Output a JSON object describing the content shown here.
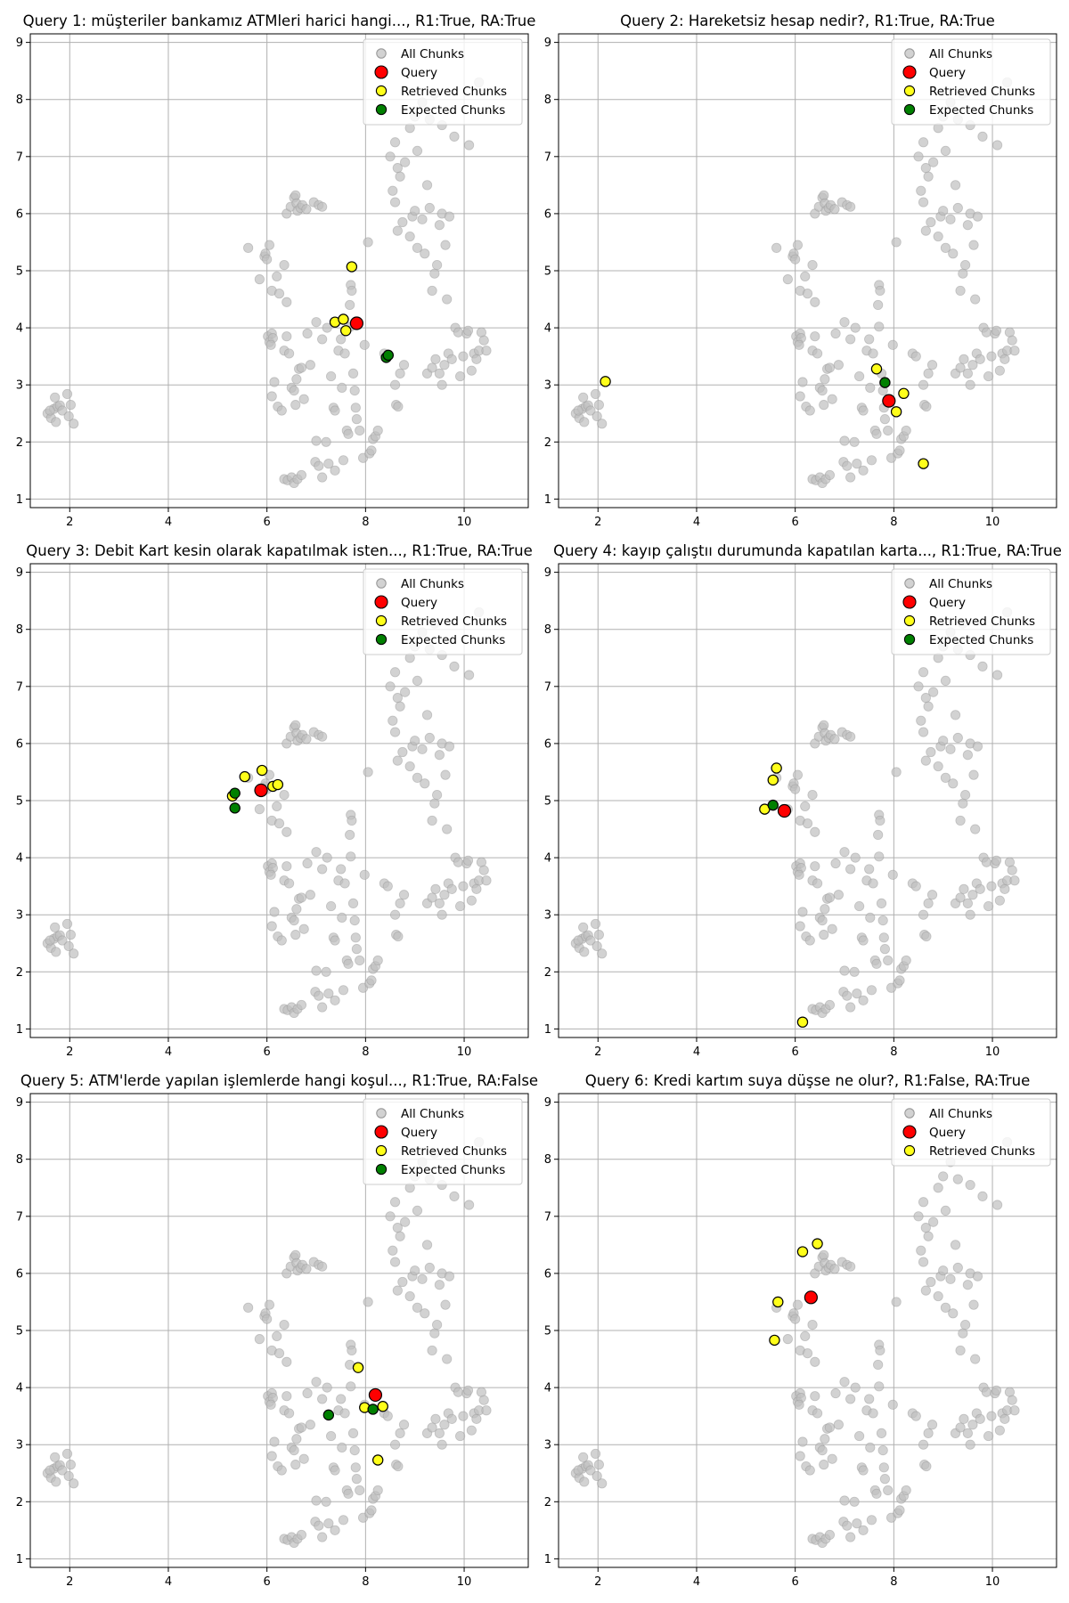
{
  "chart_data": {
    "type": "scatter",
    "colors": {
      "all_chunks": "#bfbfbf",
      "query": "#ff0000",
      "retrieved": "#ffff1a",
      "expected": "#008000",
      "marker_edge": "#000000",
      "grid": "#b0b0b0"
    },
    "xlim": [
      1.2,
      11.3
    ],
    "ylim": [
      0.85,
      9.15
    ],
    "x_ticks": [
      2,
      4,
      6,
      8,
      10
    ],
    "y_ticks": [
      1,
      2,
      3,
      4,
      5,
      6,
      7,
      8,
      9
    ],
    "grid": true,
    "legend_position": "top-right",
    "all_chunks": [
      [
        1.55,
        2.5
      ],
      [
        1.62,
        2.42
      ],
      [
        1.68,
        2.58
      ],
      [
        1.72,
        2.35
      ],
      [
        1.75,
        2.62
      ],
      [
        1.8,
        2.64
      ],
      [
        1.85,
        2.55
      ],
      [
        1.7,
        2.78
      ],
      [
        1.95,
        2.84
      ],
      [
        1.98,
        2.45
      ],
      [
        2.02,
        2.65
      ],
      [
        2.08,
        2.32
      ],
      [
        1.6,
        2.55
      ],
      [
        5.62,
        5.4
      ],
      [
        5.85,
        4.85
      ],
      [
        5.95,
        5.25
      ],
      [
        5.97,
        5.3
      ],
      [
        6.0,
        5.2
      ],
      [
        6.05,
        5.45
      ],
      [
        6.2,
        4.9
      ],
      [
        6.1,
        4.65
      ],
      [
        6.35,
        5.1
      ],
      [
        6.25,
        4.6
      ],
      [
        6.4,
        4.45
      ],
      [
        6.02,
        3.85
      ],
      [
        6.05,
        3.75
      ],
      [
        6.1,
        3.9
      ],
      [
        6.12,
        3.82
      ],
      [
        6.08,
        3.7
      ],
      [
        6.15,
        3.05
      ],
      [
        6.1,
        2.8
      ],
      [
        6.22,
        2.62
      ],
      [
        6.3,
        2.55
      ],
      [
        6.35,
        3.6
      ],
      [
        6.4,
        3.85
      ],
      [
        6.45,
        3.55
      ],
      [
        6.5,
        2.95
      ],
      [
        6.55,
        2.9
      ],
      [
        6.6,
        3.1
      ],
      [
        6.58,
        2.65
      ],
      [
        6.65,
        3.28
      ],
      [
        6.7,
        3.3
      ],
      [
        6.75,
        2.75
      ],
      [
        6.82,
        3.9
      ],
      [
        6.88,
        3.35
      ],
      [
        6.35,
        1.35
      ],
      [
        6.42,
        1.33
      ],
      [
        6.5,
        1.38
      ],
      [
        6.55,
        1.28
      ],
      [
        6.62,
        1.35
      ],
      [
        6.7,
        1.42
      ],
      [
        6.98,
        1.65
      ],
      [
        7.05,
        1.58
      ],
      [
        7.0,
        2.02
      ],
      [
        7.12,
        1.38
      ],
      [
        7.2,
        2.0
      ],
      [
        7.25,
        1.62
      ],
      [
        7.38,
        1.5
      ],
      [
        6.4,
        6.0
      ],
      [
        6.48,
        6.12
      ],
      [
        6.55,
        6.28
      ],
      [
        6.58,
        6.32
      ],
      [
        6.6,
        6.18
      ],
      [
        6.62,
        6.05
      ],
      [
        6.68,
        6.1
      ],
      [
        6.72,
        6.15
      ],
      [
        6.8,
        6.08
      ],
      [
        6.95,
        6.2
      ],
      [
        7.05,
        6.15
      ],
      [
        7.12,
        6.12
      ],
      [
        7.0,
        4.1
      ],
      [
        7.12,
        3.8
      ],
      [
        7.22,
        4.0
      ],
      [
        7.3,
        3.15
      ],
      [
        7.35,
        2.6
      ],
      [
        7.38,
        2.55
      ],
      [
        7.45,
        3.6
      ],
      [
        7.5,
        3.8
      ],
      [
        7.52,
        2.95
      ],
      [
        7.58,
        3.55
      ],
      [
        7.62,
        2.2
      ],
      [
        7.65,
        2.14
      ],
      [
        7.68,
        4.4
      ],
      [
        7.7,
        4.75
      ],
      [
        7.72,
        4.65
      ],
      [
        7.75,
        3.2
      ],
      [
        7.78,
        2.9
      ],
      [
        7.8,
        2.6
      ],
      [
        7.82,
        2.4
      ],
      [
        7.88,
        2.2
      ],
      [
        7.7,
        4.02
      ],
      [
        7.55,
        1.68
      ],
      [
        7.95,
        1.72
      ],
      [
        7.98,
        3.7
      ],
      [
        8.08,
        1.8
      ],
      [
        8.12,
        1.85
      ],
      [
        8.15,
        2.05
      ],
      [
        8.2,
        2.1
      ],
      [
        8.25,
        2.2
      ],
      [
        8.05,
        5.5
      ],
      [
        8.38,
        3.55
      ],
      [
        8.45,
        3.5
      ],
      [
        8.6,
        3.0
      ],
      [
        8.62,
        2.65
      ],
      [
        8.66,
        2.62
      ],
      [
        8.7,
        3.2
      ],
      [
        8.78,
        3.35
      ],
      [
        8.5,
        7.0
      ],
      [
        8.6,
        7.25
      ],
      [
        8.65,
        6.8
      ],
      [
        8.7,
        6.65
      ],
      [
        8.55,
        6.4
      ],
      [
        8.6,
        6.2
      ],
      [
        8.8,
        6.9
      ],
      [
        8.65,
        5.7
      ],
      [
        8.75,
        5.85
      ],
      [
        8.9,
        5.6
      ],
      [
        8.95,
        5.95
      ],
      [
        9.0,
        6.05
      ],
      [
        9.05,
        5.4
      ],
      [
        9.15,
        5.9
      ],
      [
        9.2,
        5.3
      ],
      [
        9.25,
        6.5
      ],
      [
        9.3,
        6.1
      ],
      [
        9.35,
        4.65
      ],
      [
        9.4,
        4.95
      ],
      [
        9.45,
        5.1
      ],
      [
        9.5,
        5.8
      ],
      [
        9.55,
        6.0
      ],
      [
        9.62,
        5.45
      ],
      [
        9.65,
        4.5
      ],
      [
        9.7,
        5.95
      ],
      [
        8.9,
        7.5
      ],
      [
        9.0,
        7.7
      ],
      [
        9.05,
        7.1
      ],
      [
        9.15,
        7.95
      ],
      [
        9.3,
        7.65
      ],
      [
        9.4,
        8.1
      ],
      [
        9.55,
        7.55
      ],
      [
        9.8,
        7.35
      ],
      [
        10.1,
        7.2
      ],
      [
        10.3,
        8.3
      ],
      [
        9.25,
        3.2
      ],
      [
        9.35,
        3.3
      ],
      [
        9.42,
        3.45
      ],
      [
        9.5,
        3.2
      ],
      [
        9.55,
        3.0
      ],
      [
        9.6,
        3.35
      ],
      [
        9.68,
        3.55
      ],
      [
        9.75,
        3.45
      ],
      [
        9.82,
        4.0
      ],
      [
        9.88,
        3.92
      ],
      [
        9.92,
        3.15
      ],
      [
        9.98,
        3.5
      ],
      [
        10.05,
        3.9
      ],
      [
        10.08,
        3.95
      ],
      [
        10.15,
        3.25
      ],
      [
        10.2,
        3.55
      ],
      [
        10.25,
        3.45
      ],
      [
        10.3,
        3.6
      ],
      [
        10.35,
        3.92
      ],
      [
        10.4,
        3.78
      ],
      [
        10.45,
        3.6
      ]
    ],
    "panels": [
      {
        "title": "Query 1: müşteriler bankamız ATMleri harici hangi..., R1:True, RA:True",
        "query": [
          7.82,
          4.08
        ],
        "retrieved": [
          [
            7.72,
            5.07
          ],
          [
            7.38,
            4.1
          ],
          [
            7.55,
            4.15
          ],
          [
            7.6,
            3.95
          ]
        ],
        "expected": [
          [
            8.42,
            3.48
          ],
          [
            8.46,
            3.52
          ]
        ],
        "legend": [
          "All Chunks",
          "Query",
          "Retrieved Chunks",
          "Expected Chunks"
        ]
      },
      {
        "title": "Query 2: Hareketsiz hesap nedir?, R1:True, RA:True",
        "query": [
          7.9,
          2.72
        ],
        "retrieved": [
          [
            2.15,
            3.06
          ],
          [
            7.65,
            3.28
          ],
          [
            8.2,
            2.85
          ],
          [
            8.05,
            2.53
          ],
          [
            8.6,
            1.62
          ]
        ],
        "expected": [
          [
            7.82,
            3.04
          ]
        ],
        "legend": [
          "All Chunks",
          "Query",
          "Retrieved Chunks",
          "Expected Chunks"
        ]
      },
      {
        "title": "Query 3: Debit Kart kesin olarak kapatılmak isten..., R1:True, RA:True",
        "query": [
          5.88,
          5.18
        ],
        "retrieved": [
          [
            5.55,
            5.42
          ],
          [
            5.9,
            5.53
          ],
          [
            6.12,
            5.25
          ],
          [
            6.22,
            5.28
          ],
          [
            5.3,
            5.08
          ]
        ],
        "expected": [
          [
            5.35,
            5.13
          ],
          [
            5.35,
            4.87
          ]
        ],
        "legend": [
          "All Chunks",
          "Query",
          "Retrieved Chunks",
          "Expected Chunks"
        ]
      },
      {
        "title": "Query 4: kayıp çalıştıı durumunda kapatılan karta..., R1:True, RA:True",
        "query": [
          5.78,
          4.82
        ],
        "retrieved": [
          [
            5.62,
            5.57
          ],
          [
            5.55,
            5.36
          ],
          [
            5.38,
            4.85
          ],
          [
            6.15,
            1.12
          ]
        ],
        "expected": [
          [
            5.55,
            4.92
          ]
        ],
        "legend": [
          "All Chunks",
          "Query",
          "Retrieved Chunks",
          "Expected Chunks"
        ]
      },
      {
        "title": "Query 5: ATM'lerde yapılan işlemlerde hangi koşul..., R1:True, RA:False",
        "query": [
          8.2,
          3.87
        ],
        "retrieved": [
          [
            7.85,
            4.35
          ],
          [
            7.98,
            3.65
          ],
          [
            8.35,
            3.67
          ],
          [
            8.25,
            2.73
          ]
        ],
        "expected": [
          [
            7.25,
            3.52
          ],
          [
            8.15,
            3.62
          ]
        ],
        "legend": [
          "All Chunks",
          "Query",
          "Retrieved Chunks",
          "Expected Chunks"
        ]
      },
      {
        "title": "Query 6: Kredi kartım suya düşse ne olur?, R1:False, RA:True",
        "query": [
          6.32,
          5.58
        ],
        "retrieved": [
          [
            6.15,
            6.38
          ],
          [
            6.45,
            6.52
          ],
          [
            5.65,
            5.5
          ],
          [
            5.58,
            4.83
          ]
        ],
        "expected": [],
        "legend": [
          "All Chunks",
          "Query",
          "Retrieved Chunks"
        ]
      }
    ]
  }
}
